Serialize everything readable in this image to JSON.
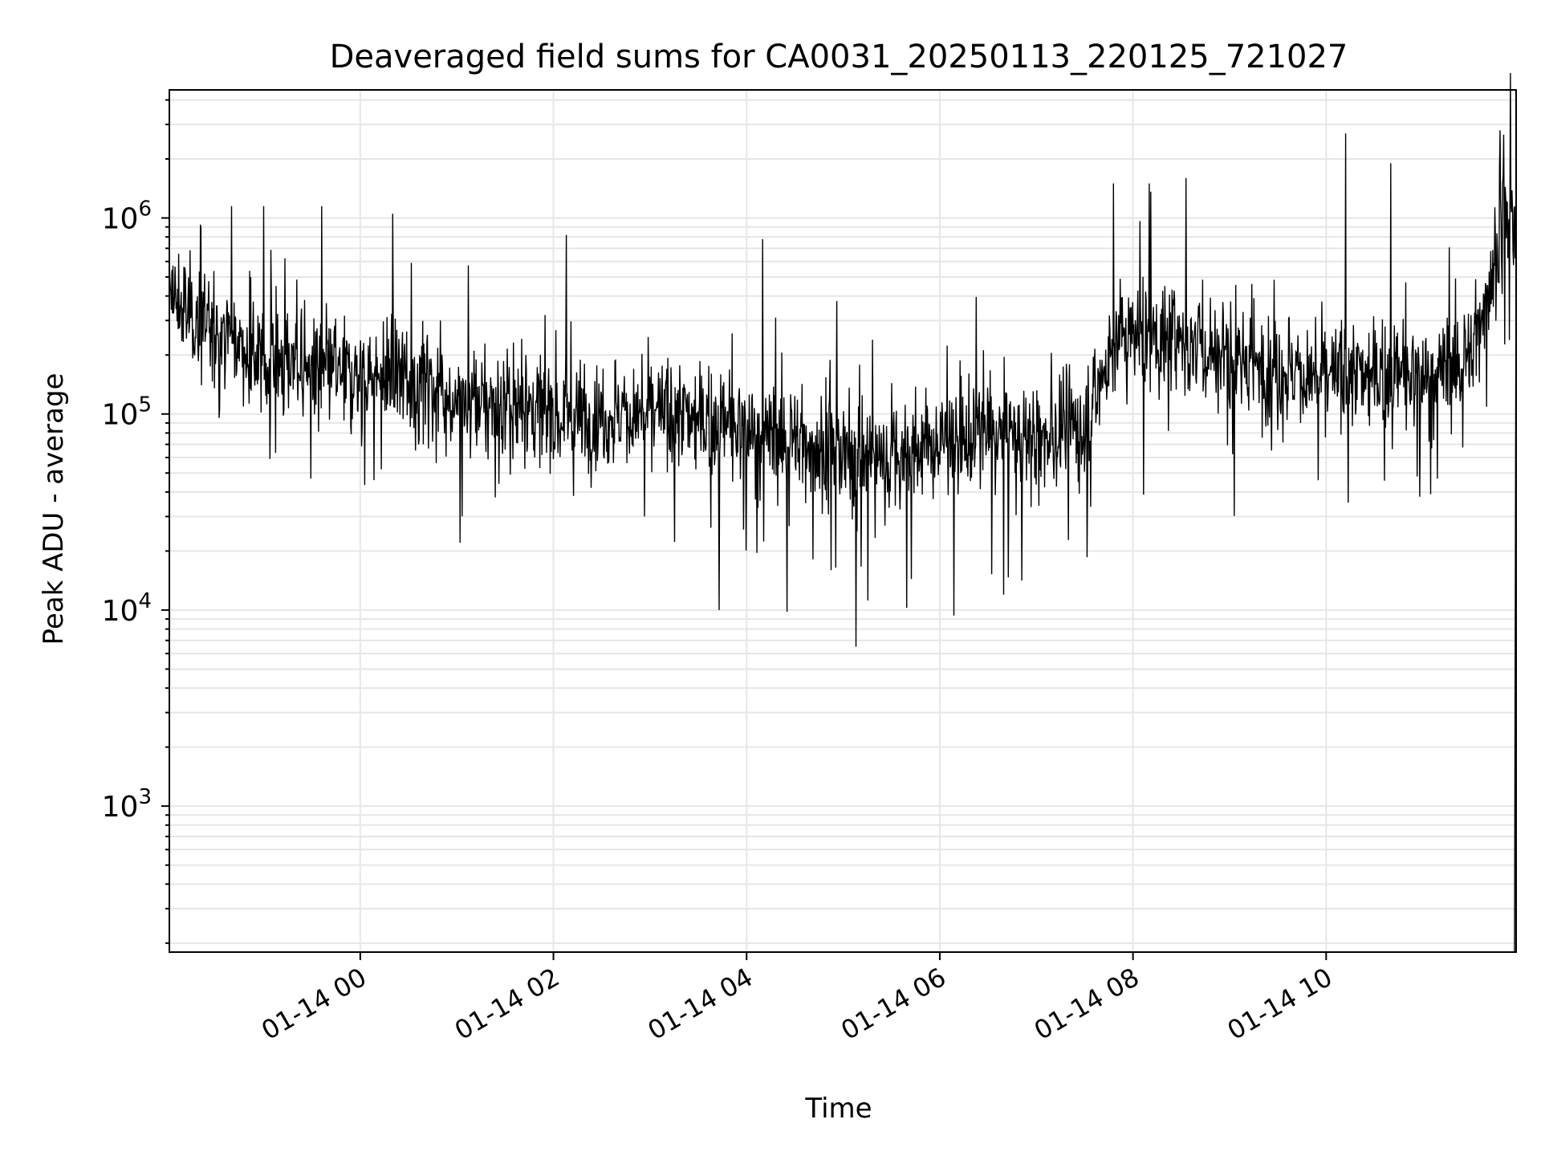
{
  "chart_data": {
    "type": "line",
    "title": "Deaveraged field sums for CA0031_20250113_220125_721027",
    "xlabel": "Time",
    "ylabel": "Peak ADU - average",
    "x_ticks": [
      "01-14 00",
      "01-14 02",
      "01-14 04",
      "01-14 06",
      "01-14 08",
      "01-14 10"
    ],
    "xlim": [
      "2025-01-13T22:01:25",
      "2025-01-14T11:58:00"
    ],
    "y_scale": "log",
    "ylim": [
      180,
      4500000
    ],
    "y_ticks": [
      {
        "value": 1000,
        "base": "10",
        "exp": "3"
      },
      {
        "value": 10000,
        "base": "10",
        "exp": "4"
      },
      {
        "value": 100000,
        "base": "10",
        "exp": "5"
      },
      {
        "value": 1000000,
        "base": "10",
        "exp": "6"
      }
    ],
    "grid": true,
    "line_color": "#000000",
    "grid_color": "#e6e6e6",
    "series": [
      {
        "trend_x": [
          "2025-01-13T22:01:25",
          "2025-01-13T22:30:00",
          "2025-01-13T23:00:00",
          "2025-01-13T23:30:00",
          "2025-01-14T00:00:00",
          "2025-01-14T00:30:00",
          "2025-01-14T01:00:00",
          "2025-01-14T01:30:00",
          "2025-01-14T02:00:00",
          "2025-01-14T02:30:00",
          "2025-01-14T03:00:00",
          "2025-01-14T03:30:00",
          "2025-01-14T04:00:00",
          "2025-01-14T04:30:00",
          "2025-01-14T05:00:00",
          "2025-01-14T05:30:00",
          "2025-01-14T06:00:00",
          "2025-01-14T06:30:00",
          "2025-01-14T07:00:00",
          "2025-01-14T07:30:00",
          "2025-01-14T07:50:00",
          "2025-01-14T08:30:00",
          "2025-01-14T09:00:00",
          "2025-01-14T09:30:00",
          "2025-01-14T10:00:00",
          "2025-01-14T10:30:00",
          "2025-01-14T11:00:00",
          "2025-01-14T11:30:00",
          "2025-01-14T11:50:00"
        ],
        "trend_y": [
          380000,
          260000,
          190000,
          170000,
          160000,
          150000,
          115000,
          110000,
          100000,
          100000,
          100000,
          95000,
          80000,
          75000,
          60000,
          60000,
          70000,
          80000,
          75000,
          85000,
          250000,
          230000,
          190000,
          170000,
          150000,
          160000,
          150000,
          200000,
          900000
        ],
        "spikes": [
          {
            "x": "2025-01-13T22:40:00",
            "y": 1150000
          },
          {
            "x": "2025-01-13T23:00:00",
            "y": 1150000
          },
          {
            "x": "2025-01-13T23:36:00",
            "y": 1150000
          },
          {
            "x": "2025-01-14T00:20:00",
            "y": 1050000
          },
          {
            "x": "2025-01-14T02:08:00",
            "y": 820000
          },
          {
            "x": "2025-01-14T04:10:00",
            "y": 780000
          },
          {
            "x": "2025-01-14T07:48:00",
            "y": 1500000
          },
          {
            "x": "2025-01-14T08:10:00",
            "y": 1500000
          },
          {
            "x": "2025-01-14T08:33:00",
            "y": 1600000
          },
          {
            "x": "2025-01-14T10:12:00",
            "y": 2700000
          },
          {
            "x": "2025-01-14T10:40:00",
            "y": 1900000
          },
          {
            "x": "2025-01-14T11:48:00",
            "y": 2800000
          },
          {
            "x": "2025-01-14T05:08:00",
            "y": 6500
          },
          {
            "x": "2025-01-14T03:43:00",
            "y": 10000
          },
          {
            "x": "2025-01-14T04:25:00",
            "y": 9800
          }
        ]
      }
    ]
  }
}
